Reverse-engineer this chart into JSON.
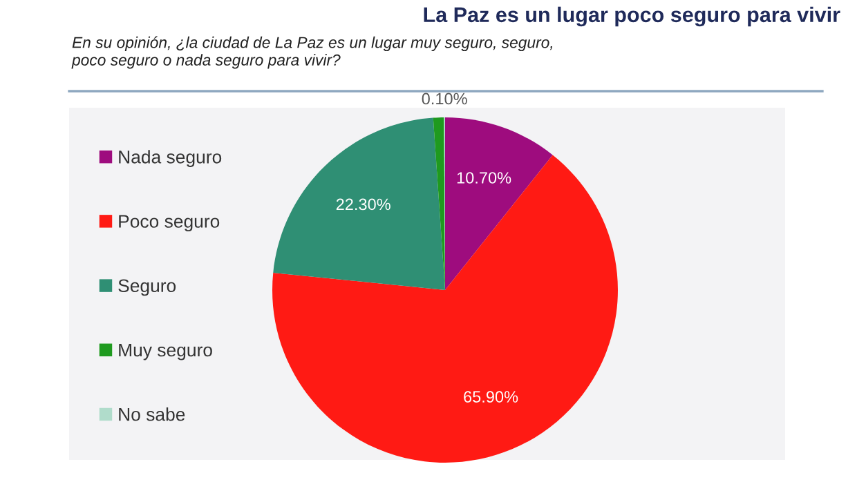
{
  "chart_data": {
    "type": "pie",
    "title": "La Paz es un lugar poco seguro para vivir",
    "subtitle": "En su opinión, ¿la ciudad de La Paz es un lugar muy seguro, seguro,\npoco seguro o nada seguro para vivir?",
    "categories": [
      "Nada seguro",
      "Poco seguro",
      "Seguro",
      "Muy seguro",
      "No sabe"
    ],
    "values": [
      10.7,
      65.9,
      22.3,
      1.0,
      0.1
    ],
    "colors": [
      "#9e0c7e",
      "#ff1a14",
      "#2f8f74",
      "#1f9a1f",
      "#b0dccb"
    ],
    "value_labels": [
      "10.70%",
      "65.90%",
      "22.30%",
      null,
      "0.10%"
    ],
    "legend": "left"
  }
}
